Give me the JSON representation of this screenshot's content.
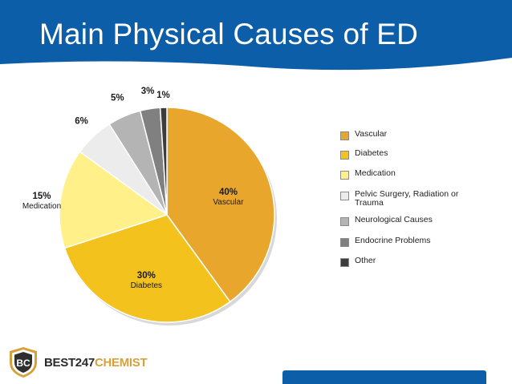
{
  "slide": {
    "title": "Main Physical Causes of ED"
  },
  "colors": {
    "header": "#0c5ea9",
    "footer": "#0c5ea9"
  },
  "logo": {
    "mark_text": "BC",
    "text_part1": "BEST247",
    "text_part2": "CHEMIST"
  },
  "chart_data": {
    "type": "pie",
    "title": "",
    "slices": [
      {
        "name": "Vascular",
        "value": 40,
        "label": "40%",
        "color": "#e8a62c"
      },
      {
        "name": "Diabetes",
        "value": 30,
        "label": "30%",
        "color": "#f4c21d"
      },
      {
        "name": "Medication",
        "value": 15,
        "label": "15%",
        "color": "#fff08a"
      },
      {
        "name": "Pelvic Surgery, Radiation or Trauma",
        "value": 6,
        "label": "6%",
        "color": "#ececec"
      },
      {
        "name": "Neurological Causes",
        "value": 5,
        "label": "5%",
        "color": "#b4b4b4"
      },
      {
        "name": "Endocrine Problems",
        "value": 3,
        "label": "3%",
        "color": "#808080"
      },
      {
        "name": "Other",
        "value": 1,
        "label": "1%",
        "color": "#3c3c3c"
      }
    ],
    "inner_labels": [
      "Vascular",
      "Diabetes",
      "Medication"
    ],
    "legend": {
      "position": "right"
    }
  }
}
